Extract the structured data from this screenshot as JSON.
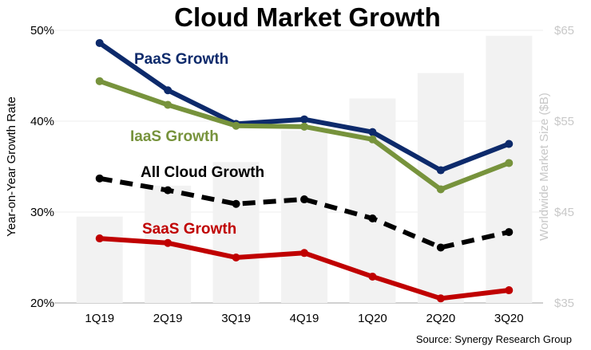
{
  "chart_data": {
    "type": "line",
    "title": "Cloud Market Growth",
    "categories": [
      "1Q19",
      "2Q19",
      "3Q19",
      "4Q19",
      "1Q20",
      "2Q20",
      "3Q20"
    ],
    "ylabel": "Year-on-Year Growth Rate",
    "ylim": [
      20,
      50
    ],
    "yticks": [
      "20%",
      "30%",
      "40%",
      "50%"
    ],
    "y2label": "Worldwide Market Size ($B)",
    "y2lim": [
      35,
      65
    ],
    "y2ticks": [
      "$35",
      "$45",
      "$55",
      "$65"
    ],
    "grid": true,
    "bars": {
      "axis": "right",
      "color": "#f2f2f2",
      "values": [
        44.5,
        47.9,
        50.5,
        54.0,
        57.5,
        60.3,
        64.4
      ]
    },
    "series": [
      {
        "name": "PaaS Growth",
        "color": "#0d2a6b",
        "dashed": false,
        "values": [
          48.6,
          43.4,
          39.7,
          40.2,
          38.8,
          34.6,
          37.5
        ]
      },
      {
        "name": "IaaS Growth",
        "color": "#77933c",
        "dashed": false,
        "values": [
          44.4,
          41.8,
          39.5,
          39.4,
          38.0,
          32.5,
          35.4
        ]
      },
      {
        "name": "All Cloud Growth",
        "color": "#000000",
        "dashed": true,
        "values": [
          33.7,
          32.4,
          30.9,
          31.4,
          29.3,
          26.1,
          27.8
        ]
      },
      {
        "name": "SaaS Growth",
        "color": "#c00000",
        "dashed": false,
        "values": [
          27.1,
          26.6,
          25.0,
          25.5,
          22.9,
          20.5,
          21.4
        ]
      }
    ],
    "source": "Source: Synergy Research Group"
  }
}
